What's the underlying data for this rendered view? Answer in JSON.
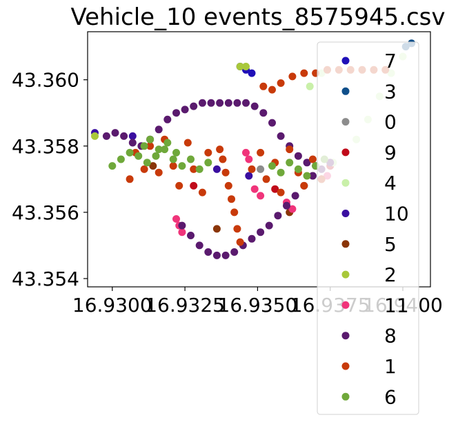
{
  "chart_data": {
    "type": "scatter",
    "title": "Vehicle_10 events_8575945.csv",
    "xlabel": "",
    "ylabel": "",
    "xlim": [
      16.92915,
      16.94095
    ],
    "ylim": [
      43.35375,
      43.36145
    ],
    "x_ticks": [
      16.93,
      16.9325,
      16.935,
      16.9375,
      16.94
    ],
    "x_tick_labels": [
      "16.9300",
      "16.9325",
      "16.9350",
      "16.9375",
      "16.9400"
    ],
    "y_ticks": [
      43.354,
      43.356,
      43.358,
      43.36
    ],
    "y_tick_labels": [
      "43.354",
      "43.356",
      "43.358",
      "43.360"
    ],
    "grid": false,
    "legend_position": "right",
    "series": [
      {
        "name": "7",
        "color": "#1f0fb8",
        "x": [
          16.9344,
          16.9346,
          16.9348
        ],
        "y": [
          43.3604,
          43.3603,
          43.3602
        ]
      },
      {
        "name": "3",
        "color": "#0f4f8a",
        "x": [
          16.9401,
          16.9403
        ],
        "y": [
          43.361,
          43.3611
        ]
      },
      {
        "name": "0",
        "color": "#8c8c8c",
        "x": [
          16.9351,
          16.9369
        ],
        "y": [
          43.3573,
          43.3571
        ]
      },
      {
        "name": "9",
        "color": "#c00a1a",
        "x": [
          16.9328,
          16.9356,
          16.9375
        ],
        "y": [
          43.3568,
          43.3567,
          43.3574
        ]
      },
      {
        "name": "4",
        "color": "#c9f0a9",
        "x": [
          16.9376,
          16.938,
          16.9384,
          16.9388,
          16.9392,
          16.9396,
          16.94,
          16.9368,
          16.9372
        ],
        "y": [
          43.3575,
          43.3578,
          43.3582,
          43.3588,
          43.3595,
          43.3602,
          43.3607,
          43.3598,
          43.3602
        ]
      },
      {
        "name": "10",
        "color": "#3a0ea0",
        "x": [
          16.9294,
          16.9307,
          16.9336,
          16.9347
        ],
        "y": [
          43.3584,
          43.3583,
          43.3573,
          43.3571
        ]
      },
      {
        "name": "5",
        "color": "#8a3508",
        "x": [
          16.9314,
          16.9336,
          16.9361,
          16.9372
        ],
        "y": [
          43.3574,
          43.3555,
          43.356,
          43.357
        ]
      },
      {
        "name": "2",
        "color": "#a8c83a",
        "x": [
          16.9294,
          16.9344,
          16.9346
        ],
        "y": [
          43.3583,
          43.3604,
          43.3604
        ]
      },
      {
        "name": "11",
        "color": "#f0347a",
        "x": [
          16.9322,
          16.9323,
          16.9324,
          16.9346,
          16.9347,
          16.9349,
          16.9351,
          16.936,
          16.9362,
          16.9374
        ],
        "y": [
          43.3558,
          43.3556,
          43.3554,
          43.3578,
          43.3576,
          43.3567,
          43.3565,
          43.3563,
          43.3561,
          43.3571
        ]
      },
      {
        "name": "8",
        "color": "#5a1a6e",
        "x": [
          16.9298,
          16.9301,
          16.9304,
          16.9307,
          16.931,
          16.9313,
          16.9316,
          16.9319,
          16.9322,
          16.9325,
          16.9328,
          16.9331,
          16.9334,
          16.9337,
          16.934,
          16.9343,
          16.9346,
          16.9349,
          16.9352,
          16.9355,
          16.9358,
          16.9361,
          16.9364,
          16.9367,
          16.937,
          16.9324,
          16.9327,
          16.933,
          16.9333,
          16.9336,
          16.9339,
          16.9342,
          16.9345,
          16.9348,
          16.9351,
          16.9354,
          16.9357,
          16.936,
          16.9363,
          16.9366,
          16.9369,
          16.9372,
          16.9375
        ],
        "y": [
          43.3583,
          43.3584,
          43.3583,
          43.3581,
          43.358,
          43.3582,
          43.3585,
          43.3588,
          43.359,
          43.3591,
          43.3592,
          43.3593,
          43.3593,
          43.3593,
          43.3593,
          43.3593,
          43.3593,
          43.3592,
          43.359,
          43.3587,
          43.3583,
          43.358,
          43.3577,
          43.3575,
          43.3574,
          43.3556,
          43.3553,
          43.355,
          43.3548,
          43.3547,
          43.3547,
          43.3548,
          43.355,
          43.3552,
          43.3554,
          43.3556,
          43.3559,
          43.3562,
          43.3565,
          43.3568,
          43.3571,
          43.3573,
          43.3575
        ]
      },
      {
        "name": "1",
        "color": "#c83a0a",
        "x": [
          16.9306,
          16.9308,
          16.9311,
          16.9313,
          16.9316,
          16.9318,
          16.9321,
          16.9323,
          16.9326,
          16.9328,
          16.9331,
          16.9333,
          16.9348,
          16.9351,
          16.9353,
          16.9356,
          16.9358,
          16.9361,
          16.9364,
          16.9366,
          16.9369,
          16.9372,
          16.9352,
          16.9355,
          16.9358,
          16.9362,
          16.9366,
          16.937,
          16.9374,
          16.9378,
          16.9382,
          16.9386,
          16.939,
          16.9394,
          16.9344,
          16.9343,
          16.9342,
          16.9341,
          16.934,
          16.9339,
          16.9338,
          16.9337
        ],
        "y": [
          43.357,
          43.3578,
          43.3573,
          43.358,
          43.3572,
          43.3582,
          43.3574,
          43.3568,
          43.3581,
          43.3573,
          43.3566,
          43.3578,
          43.3573,
          43.3578,
          43.357,
          43.3575,
          43.3566,
          43.3579,
          43.3572,
          43.3568,
          43.3576,
          43.357,
          43.3598,
          43.3597,
          43.3599,
          43.3601,
          43.3602,
          43.3602,
          43.3603,
          43.3603,
          43.3603,
          43.3603,
          43.3603,
          43.3603,
          43.3551,
          43.3555,
          43.356,
          43.3564,
          43.3568,
          43.3572,
          43.3576,
          43.3579
        ]
      },
      {
        "name": "6",
        "color": "#6fa83a",
        "x": [
          16.93,
          16.9303,
          16.9306,
          16.9309,
          16.9312,
          16.9315,
          16.9318,
          16.9321,
          16.9324,
          16.9327,
          16.933,
          16.9333,
          16.9355,
          16.9358,
          16.9361,
          16.9364,
          16.9367,
          16.937,
          16.9373,
          16.9311,
          16.9313,
          16.9316,
          16.9319,
          16.9322
        ],
        "y": [
          43.3574,
          43.3576,
          43.3578,
          43.3577,
          43.3575,
          43.3577,
          43.3579,
          43.3576,
          43.3574,
          43.3576,
          43.3573,
          43.3575,
          43.3574,
          43.3572,
          43.3575,
          43.3573,
          43.3571,
          43.3574,
          43.3576,
          43.358,
          43.3582,
          43.3579,
          43.3581,
          43.3578
        ]
      }
    ]
  }
}
